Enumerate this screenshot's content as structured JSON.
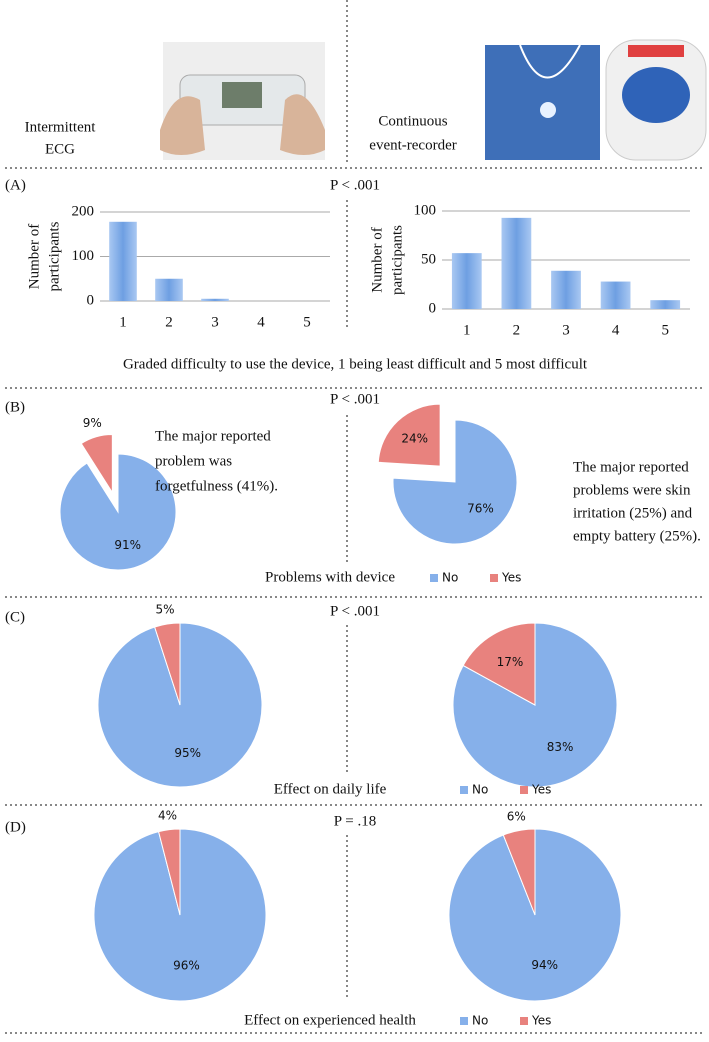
{
  "header": {
    "left": [
      "Intermittent",
      "ECG"
    ],
    "right": [
      "Continuous",
      "event-recorder"
    ]
  },
  "panels": [
    {
      "label": "(A)",
      "p_value": "P < .001",
      "caption": "Graded difficulty to use the device, 1 being least difficult and 5 most difficult"
    },
    {
      "label": "(B)",
      "p_value": "P < .001",
      "caption": "Problems with device"
    },
    {
      "label": "(C)",
      "p_value": "P < .001",
      "caption": "Effect on daily life"
    },
    {
      "label": "(D)",
      "p_value": "P = .18",
      "caption": "Effect on experienced health"
    }
  ],
  "chart_data": [
    {
      "type": "bar",
      "ylabel": [
        "Number of",
        "participants"
      ],
      "categories": [
        "1",
        "2",
        "3",
        "4",
        "5"
      ],
      "values": [
        178,
        50,
        5,
        0,
        0
      ],
      "color": "#6e9fe2",
      "ylim": [
        0,
        200
      ],
      "yticks": [
        0,
        100,
        200
      ],
      "grid": true
    },
    {
      "type": "bar",
      "ylabel": [
        "Number of",
        "participants"
      ],
      "categories": [
        "1",
        "2",
        "3",
        "4",
        "5"
      ],
      "values": [
        57,
        93,
        39,
        28,
        9
      ],
      "color": "#6e9fe2",
      "ylim": [
        0,
        100
      ],
      "yticks": [
        0,
        50,
        100
      ],
      "grid": true
    },
    {
      "type": "pie",
      "categories": [
        "No",
        "Yes"
      ],
      "values": [
        91,
        9
      ],
      "value_labels": [
        "91%",
        "9%"
      ],
      "colors": [
        "#86b0ea",
        "#e8827e"
      ],
      "explode": true,
      "annotation": [
        "The major reported",
        "problem was",
        "forgetfulness (41%)."
      ]
    },
    {
      "type": "pie",
      "categories": [
        "No",
        "Yes"
      ],
      "values": [
        76,
        24
      ],
      "value_labels": [
        "76%",
        "24%"
      ],
      "colors": [
        "#86b0ea",
        "#e8827e"
      ],
      "explode": true,
      "annotation": [
        "The major reported",
        "problems were skin",
        "irritation (25%) and",
        "empty battery (25%)."
      ]
    },
    {
      "type": "pie",
      "categories": [
        "No",
        "Yes"
      ],
      "values": [
        95,
        5
      ],
      "value_labels": [
        "95%",
        "5%"
      ],
      "colors": [
        "#86b0ea",
        "#e8827e"
      ]
    },
    {
      "type": "pie",
      "categories": [
        "No",
        "Yes"
      ],
      "values": [
        83,
        17
      ],
      "value_labels": [
        "83%",
        "17%"
      ],
      "colors": [
        "#86b0ea",
        "#e8827e"
      ]
    },
    {
      "type": "pie",
      "categories": [
        "No",
        "Yes"
      ],
      "values": [
        96,
        4
      ],
      "value_labels": [
        "96%",
        "4%"
      ],
      "colors": [
        "#86b0ea",
        "#e8827e"
      ]
    },
    {
      "type": "pie",
      "categories": [
        "No",
        "Yes"
      ],
      "values": [
        94,
        6
      ],
      "value_labels": [
        "94%",
        "6%"
      ],
      "colors": [
        "#86b0ea",
        "#e8827e"
      ]
    }
  ]
}
